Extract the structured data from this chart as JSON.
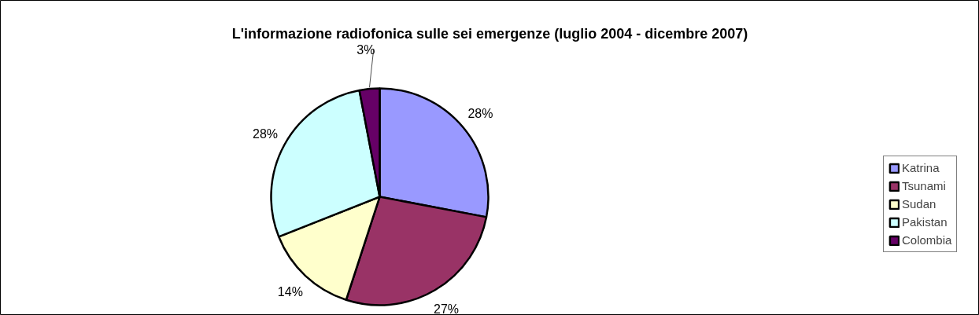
{
  "chart_data": {
    "type": "pie",
    "title": "L'informazione radiofonica sulle sei emergenze (luglio 2004 - dicembre 2007)",
    "categories": [
      "Katrina",
      "Tsunami",
      "Sudan",
      "Pakistan",
      "Colombia"
    ],
    "values": [
      28,
      27,
      14,
      28,
      3
    ],
    "colors": [
      "#9999ff",
      "#993366",
      "#ffffcc",
      "#ccffff",
      "#660066"
    ],
    "value_labels": [
      "28%",
      "27%",
      "14%",
      "28%",
      "3%"
    ],
    "legend": "right"
  }
}
